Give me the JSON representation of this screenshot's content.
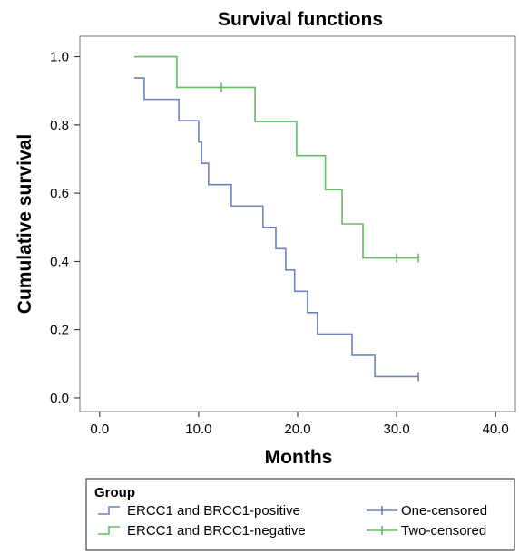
{
  "chart_data": {
    "type": "line",
    "title": "Survival functions",
    "xlabel": "Months",
    "ylabel": "Cumulative survival",
    "xlim": [
      -2,
      42
    ],
    "ylim": [
      -0.04,
      1.06
    ],
    "xticks": [
      0,
      10,
      20,
      30,
      40
    ],
    "xtick_labels": [
      "0.0",
      "10.0",
      "20.0",
      "30.0",
      "40.0"
    ],
    "yticks": [
      0.0,
      0.2,
      0.4,
      0.6,
      0.8,
      1.0
    ],
    "ytick_labels": [
      "0.0",
      "0.2",
      "0.4",
      "0.6",
      "0.8",
      "1.0"
    ],
    "grid": false,
    "series": [
      {
        "name": "ERCC1 and BRCC1-positive",
        "color": "#6f82be",
        "step_x": [
          3.5,
          4.5,
          8,
          10,
          10.3,
          11,
          13.3,
          16.5,
          17.8,
          18.8,
          19.7,
          21,
          22,
          25.5,
          27.8,
          32.2
        ],
        "step_y": [
          0.9375,
          0.875,
          0.8125,
          0.75,
          0.6875,
          0.625,
          0.5625,
          0.5,
          0.4375,
          0.375,
          0.3125,
          0.25,
          0.1875,
          0.125,
          0.0625,
          0.0625
        ],
        "censored_x": [
          32.2
        ],
        "censored_y": [
          0.0625
        ]
      },
      {
        "name": "ERCC1 and BRCC1-negative",
        "color": "#63bb63",
        "step_x": [
          3.5,
          7.8,
          15.7,
          19.9,
          22.8,
          24.5,
          26.6,
          32.2
        ],
        "step_y": [
          1.0,
          0.91,
          0.81,
          0.71,
          0.61,
          0.51,
          0.41,
          0.41
        ],
        "censored_x": [
          12.3,
          30.0,
          32.2
        ],
        "censored_y": [
          0.91,
          0.41,
          0.41
        ]
      }
    ],
    "legend": {
      "title": "Group",
      "position": "bottom",
      "entries": [
        {
          "label": "ERCC1 and BRCC1-positive",
          "kind": "line",
          "series": 0
        },
        {
          "label": "One-censored",
          "kind": "censor",
          "series": 0
        },
        {
          "label": "ERCC1 and BRCC1-negative",
          "kind": "line",
          "series": 1
        },
        {
          "label": "Two-censored",
          "kind": "censor",
          "series": 1
        }
      ]
    }
  }
}
